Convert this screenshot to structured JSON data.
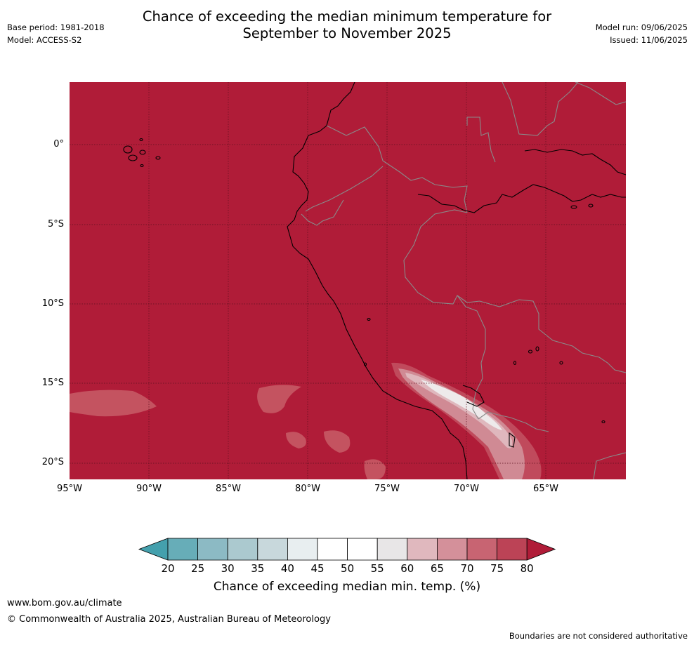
{
  "title": {
    "line1": "Chance of exceeding the median minimum temperature for",
    "line2": "September to November 2025"
  },
  "meta_left": {
    "base_period": "Base period: 1981-2018",
    "model": "Model: ACCESS-S2"
  },
  "meta_right": {
    "model_run": "Model run: 09/06/2025",
    "issued": "Issued: 11/06/2025"
  },
  "map": {
    "background_color": "#b01c38",
    "lat_labels": [
      "0°",
      "5°S",
      "10°S",
      "15°S",
      "20°S"
    ],
    "lon_labels": [
      "95°W",
      "90°W",
      "85°W",
      "80°W",
      "75°W",
      "70°W",
      "65°W"
    ],
    "gridlines": true
  },
  "colorbar": {
    "ticks": [
      "20",
      "25",
      "30",
      "35",
      "40",
      "45",
      "50",
      "55",
      "60",
      "65",
      "70",
      "75",
      "80"
    ],
    "colors": [
      "#44a0ad",
      "#67adb8",
      "#8cbac4",
      "#abc9cf",
      "#c8d8dc",
      "#e8eef0",
      "#ffffff",
      "#ffffff",
      "#e8e6e7",
      "#e0b8be",
      "#d4909a",
      "#c86472",
      "#bc4356",
      "#b01c38"
    ],
    "label": "Chance of exceeding median min. temp. (%)"
  },
  "footer": {
    "url": "www.bom.gov.au/climate",
    "copyright": "© Commonwealth of Australia 2025, Australian Bureau of Meteorology",
    "disclaimer": "Boundaries are not considered authoritative"
  }
}
